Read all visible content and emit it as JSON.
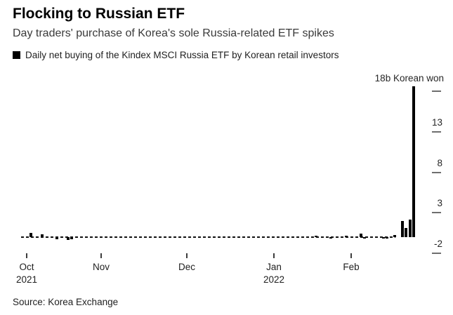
{
  "header": {
    "title": "Flocking to Russian ETF",
    "subtitle": "Day traders' purchase of Korea's sole Russia-related ETF spikes"
  },
  "legend": {
    "marker_icon": "black-square-icon",
    "marker_color": "#000000",
    "label": "Daily net buying of the Kindex MSCI Russia ETF by Korean retail investors"
  },
  "source": {
    "text": "Source: Korea Exchange"
  },
  "colors": {
    "bars": "#000000",
    "zero_line": "#111111",
    "tick_dash": "#6e6e6e",
    "axis_text": "#262626"
  },
  "chart_data": {
    "type": "bar",
    "title": "Flocking to Russian ETF",
    "series_name": "Daily net buying of the Kindex MSCI Russia ETF by Korean retail investors",
    "unit_label": "18b Korean won",
    "ylabel": "billions of Korean won",
    "ylim": [
      -2.5,
      19
    ],
    "grid": false,
    "legend_position": "top-left",
    "y_ticks": [
      {
        "value": 18,
        "label": ""
      },
      {
        "value": 13,
        "label": "13"
      },
      {
        "value": 8,
        "label": "8"
      },
      {
        "value": 3,
        "label": "3"
      },
      {
        "value": -2,
        "label": "-2"
      }
    ],
    "x_ticks": [
      {
        "label": "Oct",
        "year": "2021"
      },
      {
        "label": "Nov",
        "year": ""
      },
      {
        "label": "Dec",
        "year": ""
      },
      {
        "label": "Jan",
        "year": "2022"
      },
      {
        "label": "Feb",
        "year": ""
      }
    ],
    "peak_value_b_won": 18.6,
    "values": [
      0,
      0,
      0.55,
      0,
      0,
      0.35,
      0,
      0,
      0,
      -0.3,
      0,
      0,
      -0.35,
      -0.3,
      0,
      0,
      0,
      0,
      0,
      0,
      0,
      0,
      0,
      0,
      0,
      0,
      0,
      0,
      0,
      0,
      0,
      0,
      0,
      0,
      0,
      0,
      0,
      0,
      0,
      0,
      0,
      0,
      0,
      0,
      0,
      0,
      0,
      0,
      0,
      0,
      0,
      0,
      0,
      0,
      0,
      0,
      0,
      0,
      0,
      0,
      0,
      0,
      0,
      0,
      0,
      0,
      0,
      0,
      0,
      0,
      0,
      0,
      0,
      0,
      0,
      0,
      0,
      0,
      0.2,
      0,
      0,
      0,
      -0.2,
      0,
      0,
      0,
      0.15,
      0,
      0,
      0,
      0.4,
      -0.15,
      0,
      0,
      0,
      0,
      -0.2,
      -0.2,
      0,
      0.3,
      0,
      2.0,
      1.1,
      2.2,
      18.6
    ]
  }
}
